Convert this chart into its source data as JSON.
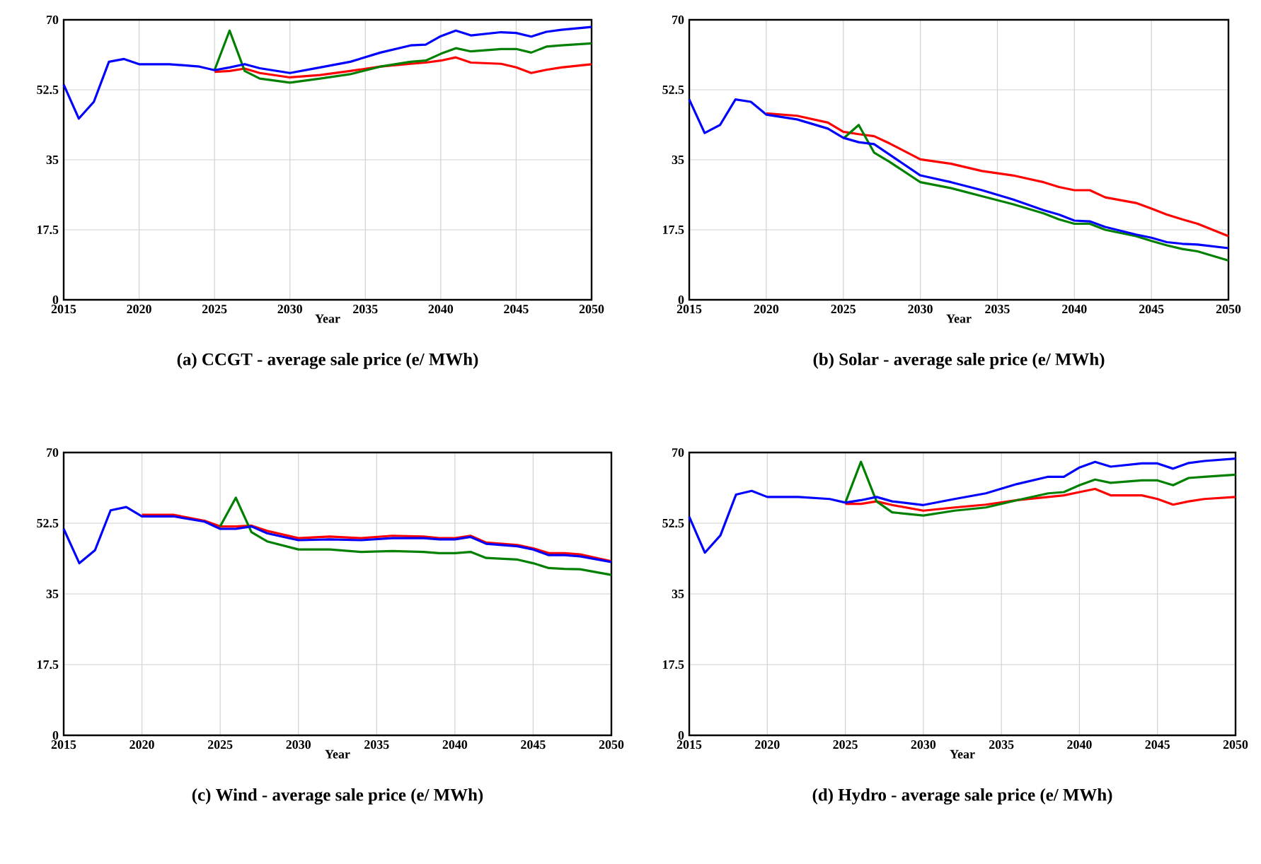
{
  "chart_data": [
    {
      "type": "line",
      "title": "(a) CCGT - average sale price (e/ MWh)",
      "xlabel": "Year",
      "xlim": [
        2015,
        2050
      ],
      "ylim": [
        0,
        70
      ],
      "xticks": [
        2015,
        2020,
        2025,
        2030,
        2035,
        2040,
        2045,
        2050
      ],
      "yticks": [
        0,
        17.5,
        35,
        52.5,
        70
      ],
      "grid": true,
      "x": [
        2015,
        2016,
        2017,
        2018,
        2019,
        2020,
        2022,
        2024,
        2025,
        2026,
        2027,
        2028,
        2030,
        2032,
        2034,
        2036,
        2038,
        2039,
        2040,
        2041,
        2042,
        2044,
        2045,
        2046,
        2047,
        2048,
        2050
      ],
      "series": [
        {
          "color": "#ff0000",
          "values": [
            null,
            null,
            null,
            null,
            null,
            null,
            null,
            null,
            57.0,
            57.2,
            57.8,
            56.7,
            55.6,
            56.2,
            57.2,
            58.3,
            59.0,
            59.3,
            59.8,
            60.6,
            59.3,
            59.0,
            58.1,
            56.7,
            57.5,
            58.1,
            58.9
          ]
        },
        {
          "color": "#008000",
          "values": [
            null,
            null,
            null,
            null,
            null,
            null,
            null,
            null,
            57.4,
            67.3,
            57.2,
            55.3,
            54.3,
            55.3,
            56.4,
            58.3,
            59.5,
            59.8,
            61.5,
            62.9,
            62.1,
            62.7,
            62.7,
            61.8,
            63.3,
            63.6,
            64.1
          ]
        },
        {
          "color": "#0000ff",
          "values": [
            53.8,
            45.3,
            49.5,
            59.5,
            60.2,
            58.9,
            58.9,
            58.3,
            57.4,
            58.1,
            58.9,
            57.9,
            56.7,
            58.1,
            59.5,
            61.8,
            63.6,
            63.8,
            65.9,
            67.3,
            66.1,
            66.9,
            66.7,
            65.8,
            67.0,
            67.5,
            68.2
          ]
        }
      ]
    },
    {
      "type": "line",
      "title": "(b) Solar - average sale price (e/ MWh)",
      "xlabel": "Year",
      "xlim": [
        2015,
        2050
      ],
      "ylim": [
        0,
        70
      ],
      "xticks": [
        2015,
        2020,
        2025,
        2030,
        2035,
        2040,
        2045,
        2050
      ],
      "yticks": [
        0,
        17.5,
        35,
        52.5,
        70
      ],
      "grid": true,
      "x": [
        2015,
        2016,
        2017,
        2018,
        2019,
        2020,
        2022,
        2024,
        2025,
        2026,
        2027,
        2028,
        2030,
        2032,
        2034,
        2036,
        2038,
        2039,
        2040,
        2041,
        2042,
        2044,
        2045,
        2046,
        2047,
        2048,
        2050
      ],
      "series": [
        {
          "color": "#ff0000",
          "values": [
            null,
            null,
            null,
            null,
            null,
            46.6,
            46.0,
            44.3,
            42.0,
            41.4,
            40.9,
            39.1,
            35.1,
            34.0,
            32.2,
            31.1,
            29.4,
            28.2,
            27.4,
            27.4,
            25.6,
            24.2,
            22.8,
            21.3,
            20.1,
            19.0,
            15.9
          ]
        },
        {
          "color": "#008000",
          "values": [
            null,
            null,
            null,
            null,
            null,
            null,
            null,
            null,
            40.3,
            43.7,
            36.8,
            34.5,
            29.4,
            27.9,
            25.9,
            23.9,
            21.6,
            20.1,
            19.0,
            19.0,
            17.5,
            15.9,
            14.7,
            13.6,
            12.7,
            12.1,
            9.8
          ]
        },
        {
          "color": "#0000ff",
          "values": [
            50.1,
            41.7,
            43.7,
            50.1,
            49.5,
            46.3,
            45.1,
            42.8,
            40.5,
            39.4,
            38.9,
            36.3,
            31.1,
            29.4,
            27.4,
            25.1,
            22.4,
            21.3,
            19.8,
            19.6,
            18.2,
            16.3,
            15.5,
            14.4,
            14.0,
            13.8,
            12.9
          ]
        }
      ]
    },
    {
      "type": "line",
      "title": "(c) Wind - average sale price (e/ MWh)",
      "xlabel": "Year",
      "xlim": [
        2015,
        2050
      ],
      "ylim": [
        0,
        70
      ],
      "xticks": [
        2015,
        2020,
        2025,
        2030,
        2035,
        2040,
        2045,
        2050
      ],
      "yticks": [
        0,
        17.5,
        35,
        52.5,
        70
      ],
      "grid": true,
      "x": [
        2015,
        2016,
        2017,
        2018,
        2019,
        2020,
        2022,
        2024,
        2025,
        2026,
        2027,
        2028,
        2030,
        2032,
        2034,
        2036,
        2038,
        2039,
        2040,
        2041,
        2042,
        2044,
        2045,
        2046,
        2047,
        2048,
        2050
      ],
      "series": [
        {
          "color": "#ff0000",
          "values": [
            null,
            null,
            null,
            null,
            null,
            54.6,
            54.6,
            53.1,
            51.7,
            51.7,
            51.9,
            50.6,
            48.8,
            49.2,
            48.8,
            49.4,
            49.2,
            48.8,
            48.8,
            49.4,
            47.7,
            47.1,
            46.3,
            45.1,
            45.1,
            44.8,
            43.1
          ]
        },
        {
          "color": "#008000",
          "values": [
            null,
            null,
            null,
            null,
            null,
            null,
            null,
            null,
            51.7,
            58.8,
            50.3,
            48.0,
            46.0,
            46.0,
            45.4,
            45.6,
            45.4,
            45.1,
            45.1,
            45.4,
            43.9,
            43.5,
            42.6,
            41.4,
            41.2,
            41.1,
            39.7
          ]
        },
        {
          "color": "#0000ff",
          "values": [
            51.1,
            42.6,
            45.8,
            55.7,
            56.5,
            54.2,
            54.2,
            52.9,
            51.1,
            51.1,
            51.7,
            50.0,
            48.3,
            48.5,
            48.3,
            48.8,
            48.8,
            48.5,
            48.5,
            49.1,
            47.4,
            46.8,
            46.0,
            44.6,
            44.6,
            44.3,
            42.9
          ]
        }
      ]
    },
    {
      "type": "line",
      "title": "(d) Hydro - average sale price (e/ MWh)",
      "xlabel": "Year",
      "xlim": [
        2015,
        2050
      ],
      "ylim": [
        0,
        70
      ],
      "xticks": [
        2015,
        2020,
        2025,
        2030,
        2035,
        2040,
        2045,
        2050
      ],
      "yticks": [
        0,
        17.5,
        35,
        52.5,
        70
      ],
      "grid": true,
      "x": [
        2015,
        2016,
        2017,
        2018,
        2019,
        2020,
        2022,
        2024,
        2025,
        2026,
        2027,
        2028,
        2030,
        2032,
        2034,
        2036,
        2038,
        2039,
        2040,
        2041,
        2042,
        2044,
        2045,
        2046,
        2047,
        2048,
        2050
      ],
      "series": [
        {
          "color": "#ff0000",
          "values": [
            null,
            null,
            null,
            null,
            null,
            null,
            null,
            null,
            57.3,
            57.3,
            57.9,
            57.0,
            55.6,
            56.4,
            57.1,
            58.2,
            59.0,
            59.4,
            60.2,
            61.0,
            59.4,
            59.4,
            58.5,
            57.1,
            57.9,
            58.5,
            59.0
          ]
        },
        {
          "color": "#008000",
          "values": [
            null,
            null,
            null,
            null,
            null,
            null,
            null,
            null,
            57.6,
            67.7,
            57.9,
            55.2,
            54.4,
            55.6,
            56.4,
            58.2,
            59.9,
            60.2,
            61.9,
            63.3,
            62.5,
            63.1,
            63.1,
            61.9,
            63.7,
            64.0,
            64.5
          ]
        },
        {
          "color": "#0000ff",
          "values": [
            54.1,
            45.2,
            49.5,
            59.6,
            60.5,
            59.0,
            59.0,
            58.5,
            57.6,
            58.2,
            59.0,
            57.9,
            57.0,
            58.5,
            59.9,
            62.2,
            64.0,
            64.0,
            66.3,
            67.7,
            66.5,
            67.3,
            67.3,
            66.0,
            67.4,
            67.9,
            68.5
          ]
        }
      ]
    }
  ]
}
